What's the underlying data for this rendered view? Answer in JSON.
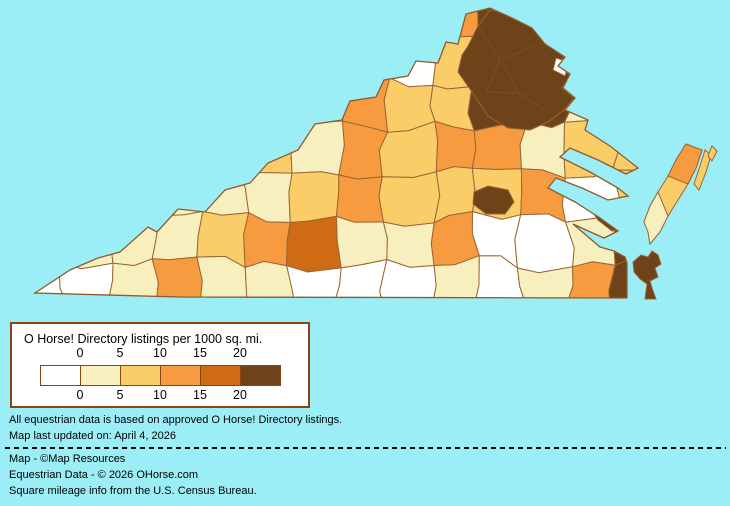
{
  "page": {
    "background_color": "#9BEEF5"
  },
  "map": {
    "name": "virginia-equestrian-density-choropleth",
    "border_color": "#996633",
    "outline_color": "#8F5A2B",
    "inner_border_color": "#7d4e24",
    "water_color": "#9BEEF5",
    "class_colors": [
      "#FFFFFF",
      "#F7F0BE",
      "#FACD69",
      "#F79B40",
      "#CE6B14",
      "#6F4319"
    ],
    "grid_classes": [
      [
        1,
        1,
        1,
        1,
        1,
        1,
        1,
        1,
        1,
        3,
        5,
        5,
        1,
        1
      ],
      [
        1,
        1,
        1,
        1,
        1,
        1,
        1,
        1,
        0,
        2,
        5,
        5,
        2,
        2
      ],
      [
        0,
        0,
        0,
        0,
        1,
        1,
        1,
        3,
        2,
        2,
        5,
        5,
        1,
        2
      ],
      [
        0,
        0,
        0,
        1,
        1,
        2,
        1,
        3,
        2,
        3,
        3,
        1,
        2,
        2
      ],
      [
        0,
        0,
        1,
        1,
        1,
        1,
        2,
        3,
        2,
        2,
        2,
        3,
        0,
        2
      ],
      [
        0,
        1,
        1,
        1,
        2,
        3,
        4,
        1,
        1,
        3,
        0,
        0,
        1,
        5
      ],
      [
        0,
        0,
        1,
        3,
        1,
        1,
        0,
        0,
        0,
        1,
        0,
        1,
        3,
        5
      ]
    ],
    "regions": {
      "nova-cluster": 5,
      "arlington-notch": 0,
      "richmond-city": 5,
      "middle-peninsula": 5,
      "virginia-beach": 5,
      "eastern-shore": 2,
      "eastern-shore-north": 3,
      "eastern-shore-south": 1,
      "barrier-island": 2,
      "barrier-island-2": 2
    }
  },
  "legend": {
    "title": "O Horse! Directory listings per 1000 sq. mi.",
    "ticks": [
      "0",
      "5",
      "10",
      "15",
      "20"
    ],
    "box_border_color": "#8B4513"
  },
  "notes": {
    "line1": "All equestrian data is based on approved O Horse! Directory listings.",
    "line2": "Map last updated on: April 4, 2026"
  },
  "credits": {
    "line1": "Map - ©Map Resources",
    "line2": "Equestrian Data - © 2026 OHorse.com",
    "line3": "Square mileage info from the U.S. Census Bureau."
  }
}
